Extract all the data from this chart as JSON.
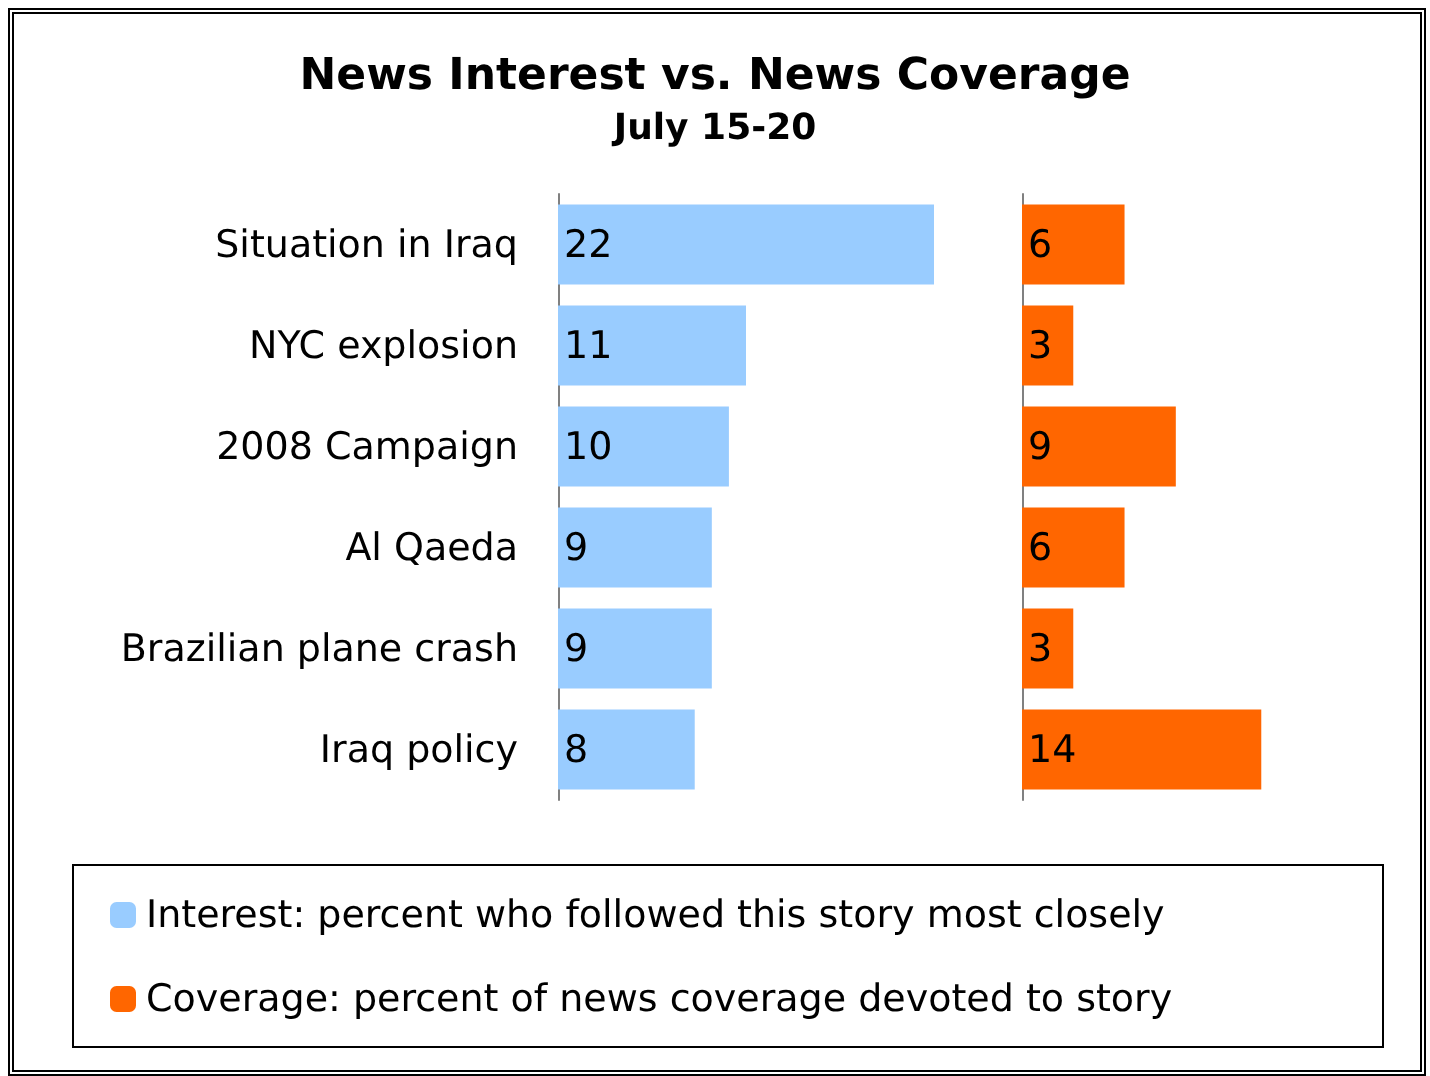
{
  "chart_data": [
    {
      "type": "bar",
      "orientation": "horizontal",
      "title": "News Interest vs. News Coverage",
      "subtitle": "July 15-20",
      "categories": [
        "Situation in Iraq",
        "NYC explosion",
        "2008 Campaign",
        "Al Qaeda",
        "Brazilian plane crash",
        "Iraq policy"
      ],
      "series": [
        {
          "name": "Interest: percent who followed this story most closely",
          "color": "#99ccff",
          "values": [
            22,
            11,
            10,
            9,
            9,
            8
          ]
        }
      ],
      "data_labels": true,
      "legend": "bottom",
      "tick_labels": "y"
    },
    {
      "type": "bar",
      "orientation": "horizontal",
      "categories": [
        null,
        null,
        null,
        null,
        null,
        null
      ],
      "series": [
        {
          "name": "Coverage: percent of news coverage devoted to story",
          "color": "#ff6600",
          "values": [
            6,
            3,
            9,
            6,
            3,
            14
          ]
        }
      ],
      "data_labels": true,
      "legend": "bottom",
      "tick_labels": "y"
    }
  ]
}
